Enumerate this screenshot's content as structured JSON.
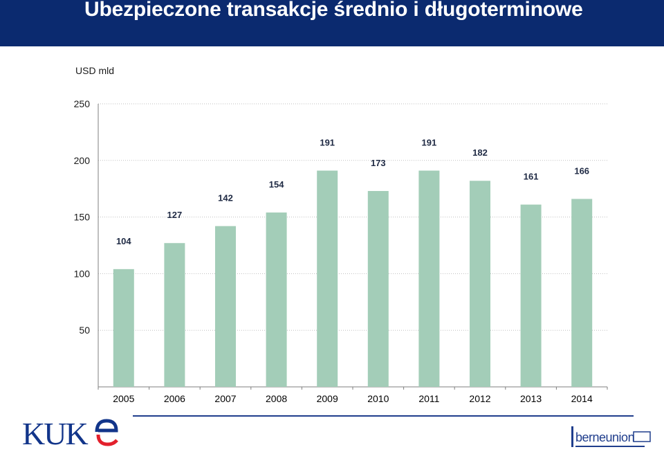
{
  "header": {
    "title": "Ubezpieczone transakcje średnio i długoterminowe"
  },
  "unit_label": "USD mld",
  "colors": {
    "header_bg": "#0b2a6f",
    "bar": "#a3cdb8",
    "gridline": "#bfbfbf",
    "axis": "#7f7f7f",
    "label_text": "#1f2a44",
    "kuke_blue": "#12358a",
    "kuke_red": "#e3202c"
  },
  "logos": {
    "kuke": "KUKE",
    "berneunion": "berneunion"
  },
  "chart_data": {
    "type": "bar",
    "categories": [
      "2005",
      "2006",
      "2007",
      "2008",
      "2009",
      "2010",
      "2011",
      "2012",
      "2013",
      "2014"
    ],
    "values": [
      104,
      127,
      142,
      154,
      191,
      173,
      191,
      182,
      161,
      166
    ],
    "title": "",
    "xlabel": "",
    "ylabel": "USD mld",
    "ylim": [
      0,
      250
    ],
    "yticks": [
      50,
      100,
      150,
      200,
      250
    ],
    "grid": true,
    "legend": "none",
    "data_labels": true
  }
}
